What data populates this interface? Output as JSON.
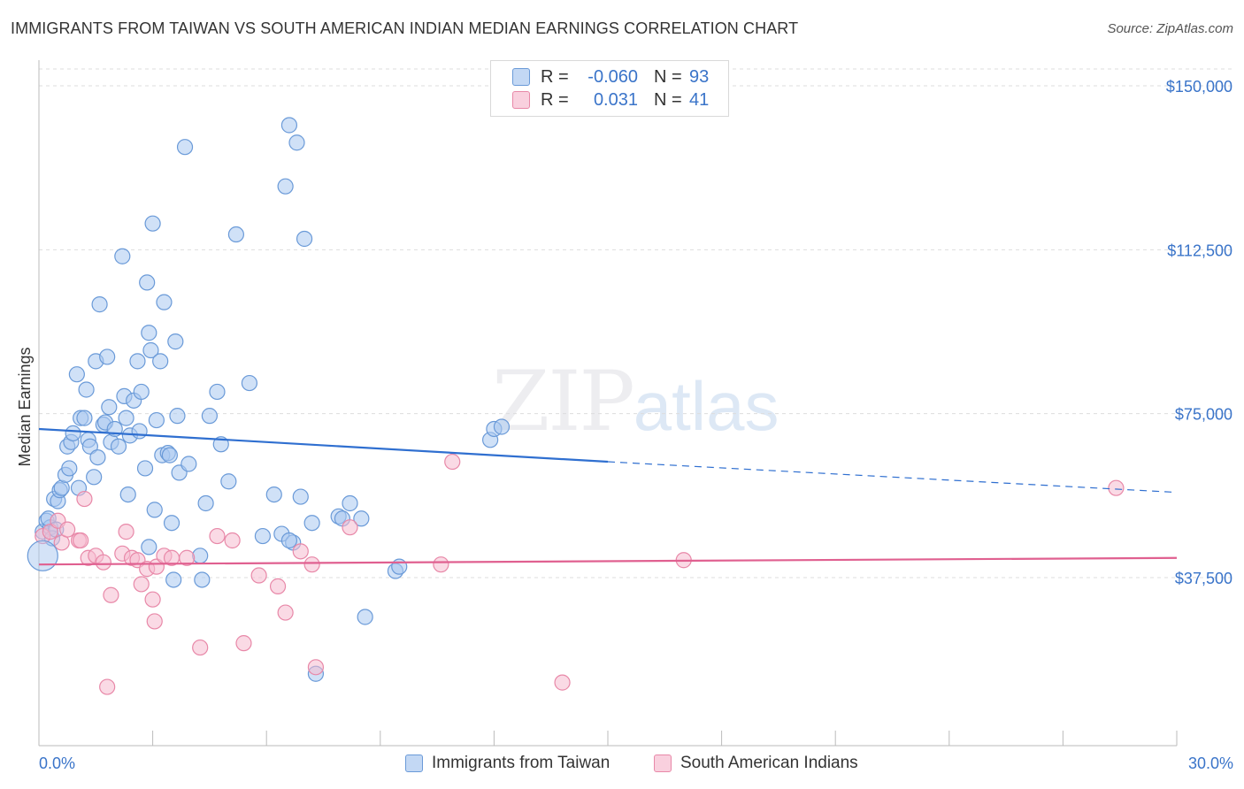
{
  "header": {
    "title": "IMMIGRANTS FROM TAIWAN VS SOUTH AMERICAN INDIAN MEDIAN EARNINGS CORRELATION CHART",
    "source": "Source: ZipAtlas.com"
  },
  "watermark": {
    "zip": "ZIP",
    "atlas": "atlas"
  },
  "legend": {
    "r_label": "R =",
    "n_label": "N =",
    "series": [
      {
        "name": "Immigrants from Taiwan",
        "r": "-0.060",
        "n": "93"
      },
      {
        "name": "South American Indians",
        "r": "0.031",
        "n": "41"
      }
    ]
  },
  "colors": {
    "blue_fill": "#aac8f0",
    "blue_stroke": "#6a9ad8",
    "blue_line": "#2f6fd0",
    "pink_fill": "#f6bcd0",
    "pink_stroke": "#e888a8",
    "pink_line": "#e06090",
    "axis_label": "#3a74c9",
    "grid": "#dddddd"
  },
  "chart_data": {
    "type": "scatter",
    "title": "IMMIGRANTS FROM TAIWAN VS SOUTH AMERICAN INDIAN MEDIAN EARNINGS CORRELATION CHART",
    "xlabel": "",
    "ylabel": "Median Earnings",
    "xlim": [
      0,
      30
    ],
    "ylim": [
      0,
      160000
    ],
    "x_tick_labels": [
      "0.0%",
      "30.0%"
    ],
    "y_ticks": [
      37500,
      75000,
      112500,
      150000
    ],
    "y_tick_labels": [
      "$37,500",
      "$75,000",
      "$112,500",
      "$150,000"
    ],
    "grid": true,
    "legend_placement": "top-center",
    "series": [
      {
        "name": "Immigrants from Taiwan",
        "color": "#aac8f0",
        "trend": {
          "x": [
            0,
            15
          ],
          "y": [
            71500,
            64000
          ],
          "dashed_to": [
            30,
            57000
          ]
        },
        "points": [
          [
            0.1,
            48000
          ],
          [
            0.2,
            50500
          ],
          [
            0.3,
            49000
          ],
          [
            0.35,
            46500
          ],
          [
            0.4,
            55500
          ],
          [
            0.5,
            55000
          ],
          [
            0.55,
            57500
          ],
          [
            0.6,
            58000
          ],
          [
            0.7,
            61000
          ],
          [
            0.75,
            67500
          ],
          [
            0.8,
            62500
          ],
          [
            0.85,
            68500
          ],
          [
            0.9,
            70500
          ],
          [
            1.0,
            84000
          ],
          [
            1.05,
            58000
          ],
          [
            1.1,
            74000
          ],
          [
            1.2,
            74000
          ],
          [
            1.25,
            80500
          ],
          [
            1.3,
            69000
          ],
          [
            1.35,
            67500
          ],
          [
            1.45,
            60500
          ],
          [
            1.5,
            87000
          ],
          [
            1.55,
            65000
          ],
          [
            1.6,
            100000
          ],
          [
            1.7,
            72500
          ],
          [
            1.75,
            73000
          ],
          [
            1.8,
            88000
          ],
          [
            1.85,
            76500
          ],
          [
            1.9,
            68500
          ],
          [
            2.0,
            71500
          ],
          [
            2.1,
            67500
          ],
          [
            2.2,
            111000
          ],
          [
            2.25,
            79000
          ],
          [
            2.35,
            56500
          ],
          [
            2.4,
            70000
          ],
          [
            2.5,
            78000
          ],
          [
            2.6,
            87000
          ],
          [
            2.65,
            71000
          ],
          [
            2.7,
            80000
          ],
          [
            2.8,
            62500
          ],
          [
            2.85,
            105000
          ],
          [
            2.9,
            93500
          ],
          [
            2.9,
            44500
          ],
          [
            2.95,
            89500
          ],
          [
            3.0,
            118500
          ],
          [
            3.05,
            53000
          ],
          [
            3.1,
            73500
          ],
          [
            3.2,
            87000
          ],
          [
            3.25,
            65500
          ],
          [
            3.3,
            100500
          ],
          [
            3.4,
            66000
          ],
          [
            3.45,
            65500
          ],
          [
            3.5,
            50000
          ],
          [
            3.55,
            37000
          ],
          [
            3.6,
            91500
          ],
          [
            3.65,
            74500
          ],
          [
            3.7,
            61500
          ],
          [
            3.85,
            136000
          ],
          [
            3.95,
            63500
          ],
          [
            4.25,
            42500
          ],
          [
            4.3,
            37000
          ],
          [
            4.4,
            54500
          ],
          [
            4.5,
            74500
          ],
          [
            4.7,
            80000
          ],
          [
            4.8,
            68000
          ],
          [
            5.0,
            59500
          ],
          [
            5.2,
            116000
          ],
          [
            5.55,
            82000
          ],
          [
            5.9,
            47000
          ],
          [
            6.2,
            56500
          ],
          [
            6.4,
            47500
          ],
          [
            6.5,
            127000
          ],
          [
            6.6,
            141000
          ],
          [
            6.7,
            45500
          ],
          [
            6.8,
            137000
          ],
          [
            6.9,
            56000
          ],
          [
            7.0,
            115000
          ],
          [
            7.2,
            50000
          ],
          [
            7.3,
            15500
          ],
          [
            7.9,
            51500
          ],
          [
            8.0,
            51000
          ],
          [
            8.2,
            54500
          ],
          [
            8.5,
            51000
          ],
          [
            8.6,
            28500
          ],
          [
            9.4,
            39000
          ],
          [
            9.5,
            40000
          ],
          [
            11.9,
            69000
          ],
          [
            12.0,
            71500
          ],
          [
            12.2,
            72000
          ],
          [
            6.6,
            46000
          ],
          [
            0.25,
            51000
          ],
          [
            0.45,
            48500
          ],
          [
            2.3,
            74000
          ]
        ]
      },
      {
        "name": "South American Indians",
        "color": "#f6bcd0",
        "trend": {
          "x": [
            0,
            30
          ],
          "y": [
            40500,
            42000
          ]
        },
        "points": [
          [
            0.1,
            47000
          ],
          [
            0.3,
            48000
          ],
          [
            0.5,
            50500
          ],
          [
            0.6,
            45500
          ],
          [
            0.75,
            48500
          ],
          [
            1.05,
            46000
          ],
          [
            1.1,
            46000
          ],
          [
            1.2,
            55500
          ],
          [
            1.3,
            42000
          ],
          [
            1.5,
            42500
          ],
          [
            1.7,
            41000
          ],
          [
            1.8,
            12500
          ],
          [
            1.9,
            33500
          ],
          [
            2.2,
            43000
          ],
          [
            2.3,
            48000
          ],
          [
            2.45,
            42000
          ],
          [
            2.6,
            41500
          ],
          [
            2.7,
            36000
          ],
          [
            2.85,
            39500
          ],
          [
            3.0,
            32500
          ],
          [
            3.05,
            27500
          ],
          [
            3.1,
            40000
          ],
          [
            3.3,
            42500
          ],
          [
            3.5,
            42000
          ],
          [
            3.9,
            42000
          ],
          [
            4.25,
            21500
          ],
          [
            4.7,
            47000
          ],
          [
            5.1,
            46000
          ],
          [
            5.4,
            22500
          ],
          [
            5.8,
            38000
          ],
          [
            6.3,
            35500
          ],
          [
            6.5,
            29500
          ],
          [
            6.9,
            43500
          ],
          [
            7.2,
            40500
          ],
          [
            7.3,
            17000
          ],
          [
            8.2,
            49000
          ],
          [
            10.6,
            40500
          ],
          [
            10.9,
            64000
          ],
          [
            13.8,
            13500
          ],
          [
            17.0,
            41500
          ],
          [
            28.4,
            58000
          ]
        ]
      }
    ]
  }
}
